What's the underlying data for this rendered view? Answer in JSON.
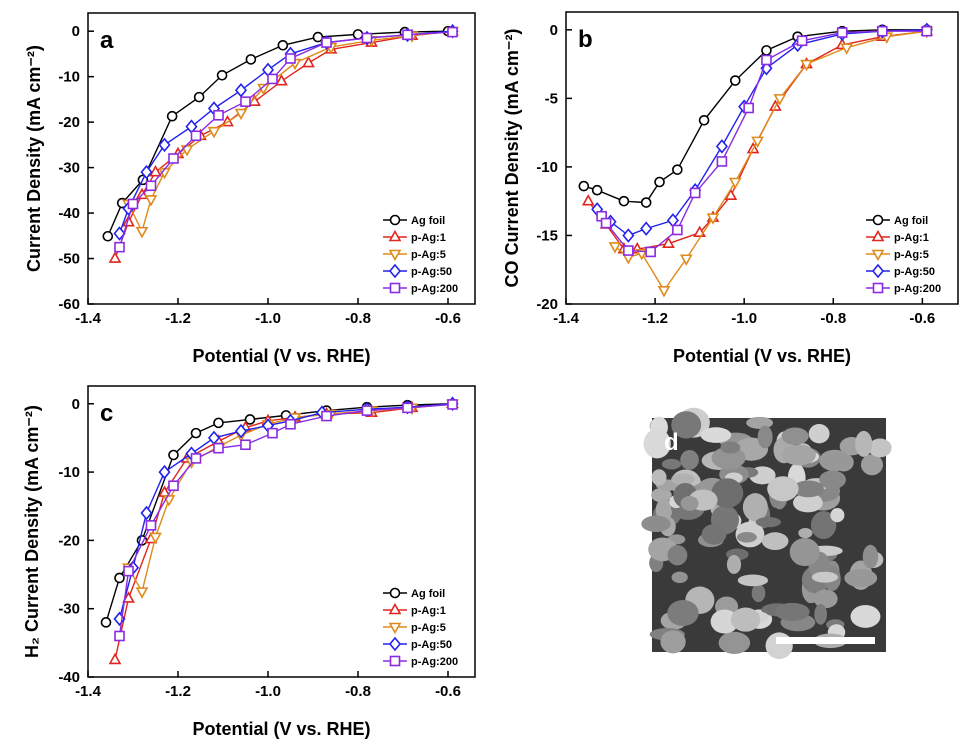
{
  "chart_data": [
    {
      "type": "line",
      "panel_label": "a",
      "xlabel": "Potential (V vs. RHE)",
      "ylabel": "Current Density (mA cm⁻²)",
      "legend": "lower right",
      "xlim": [
        -1.4,
        -0.54
      ],
      "xticks": [
        -1.4,
        -1.2,
        {
          "value": -1,
          "label": "-1.0"
        },
        -0.8,
        -0.6
      ],
      "ylim": [
        -60,
        4
      ],
      "yticks": [
        -60,
        -50,
        -40,
        -30,
        -20,
        -10,
        0
      ],
      "series": [
        {
          "name": "Ag foil",
          "color": "#000000",
          "marker": "circle",
          "x": [
            -1.356,
            -1.324,
            -1.278,
            -1.213,
            -1.153,
            -1.102,
            -1.038,
            -0.967,
            -0.889,
            -0.8,
            -0.696,
            -0.6
          ],
          "values": [
            -45.1,
            -37.8,
            -32.7,
            -18.7,
            -14.5,
            -9.7,
            -6.2,
            -3.1,
            -1.3,
            -0.7,
            -0.2,
            0
          ]
        },
        {
          "name": "p-Ag:1",
          "color": "#e0261e",
          "marker": "triangle-up",
          "x": [
            -1.34,
            -1.31,
            -1.28,
            -1.25,
            -1.2,
            -1.15,
            -1.09,
            -1.03,
            -0.97,
            -0.91,
            -0.86,
            -0.77,
            -0.68,
            -0.59
          ],
          "values": [
            -50,
            -42,
            -36,
            -31,
            -27,
            -23,
            -20,
            -15.5,
            -11,
            -7,
            -4,
            -2.5,
            -1,
            0
          ]
        },
        {
          "name": "p-Ag:5",
          "color": "#e08a1a",
          "marker": "triangle-down",
          "x": [
            -1.31,
            -1.28,
            -1.26,
            -1.23,
            -1.18,
            -1.12,
            -1.06,
            -1.01,
            -0.94,
            -0.86,
            -0.77,
            -0.68,
            -0.59
          ],
          "values": [
            -38,
            -44,
            -37,
            -31,
            -26,
            -22,
            -18,
            -12.5,
            -7,
            -3.5,
            -2,
            -1,
            0
          ]
        },
        {
          "name": "p-Ag:50",
          "color": "#2222ee",
          "marker": "diamond",
          "x": [
            -1.33,
            -1.31,
            -1.27,
            -1.23,
            -1.17,
            -1.12,
            -1.06,
            -1.0,
            -0.95,
            -0.87,
            -0.78,
            -0.69,
            -0.59
          ],
          "values": [
            -44.5,
            -39,
            -31,
            -25,
            -21,
            -17,
            -13,
            -8.5,
            -5,
            -2.5,
            -1.5,
            -0.8,
            0
          ]
        },
        {
          "name": "p-Ag:200",
          "color": "#8a2be2",
          "marker": "square",
          "x": [
            -1.33,
            -1.3,
            -1.26,
            -1.21,
            -1.16,
            -1.11,
            -1.05,
            -0.99,
            -0.95,
            -0.87,
            -0.78,
            -0.69,
            -0.59
          ],
          "values": [
            -47.5,
            -38,
            -34,
            -28,
            -23,
            -18.5,
            -15.5,
            -10.5,
            -6,
            -2.5,
            -1.5,
            -0.8,
            -0.2
          ]
        }
      ]
    },
    {
      "type": "line",
      "panel_label": "b",
      "xlabel": "Potential (V vs. RHE)",
      "ylabel": "CO Current Density (mA cm⁻²)",
      "legend": "lower right",
      "xlim": [
        -1.4,
        -0.52
      ],
      "xticks": [
        -1.4,
        -1.2,
        {
          "value": -1,
          "label": "-1.0"
        },
        -0.8,
        -0.6
      ],
      "ylim": [
        -20,
        1.3
      ],
      "yticks": [
        -20,
        -15,
        -10,
        -5,
        0
      ],
      "series": [
        {
          "name": "Ag foil",
          "color": "#000000",
          "marker": "circle",
          "x": [
            -1.36,
            -1.33,
            -1.27,
            -1.22,
            -1.19,
            -1.15,
            -1.09,
            -1.02,
            -0.95,
            -0.88,
            -0.78,
            -0.69,
            -0.59
          ],
          "values": [
            -11.4,
            -11.7,
            -12.5,
            -12.6,
            -11.1,
            -10.2,
            -6.6,
            -3.7,
            -1.5,
            -0.5,
            -0.1,
            0,
            0
          ]
        },
        {
          "name": "p-Ag:1",
          "color": "#e0261e",
          "marker": "triangle-up",
          "x": [
            -1.35,
            -1.31,
            -1.27,
            -1.24,
            -1.17,
            -1.1,
            -1.07,
            -1.03,
            -0.98,
            -0.93,
            -0.86,
            -0.78,
            -0.69,
            -0.59
          ],
          "values": [
            -12.5,
            -14.2,
            -16,
            -16,
            -15.6,
            -14.8,
            -13.7,
            -12.1,
            -8.7,
            -5.6,
            -2.5,
            -1.1,
            -0.5,
            -0.1
          ]
        },
        {
          "name": "p-Ag:5",
          "color": "#e08a1a",
          "marker": "triangle-down",
          "x": [
            -1.29,
            -1.26,
            -1.23,
            -1.18,
            -1.13,
            -1.07,
            -1.02,
            -0.97,
            -0.92,
            -0.86,
            -0.77,
            -0.68,
            -0.59
          ],
          "values": [
            -15.8,
            -16.6,
            -16.3,
            -19,
            -16.7,
            -13.7,
            -11.1,
            -8.1,
            -5,
            -2.5,
            -1.3,
            -0.5,
            -0.1
          ]
        },
        {
          "name": "p-Ag:50",
          "color": "#2222ee",
          "marker": "diamond",
          "x": [
            -1.33,
            -1.3,
            -1.26,
            -1.22,
            -1.16,
            -1.11,
            -1.05,
            -1.0,
            -0.95,
            -0.88,
            -0.78,
            -0.69,
            -0.59
          ],
          "values": [
            -13.1,
            -14,
            -15,
            -14.5,
            -13.9,
            -11.7,
            -8.5,
            -5.6,
            -2.8,
            -1.1,
            -0.3,
            -0.1,
            0
          ]
        },
        {
          "name": "p-Ag:200",
          "color": "#8a2be2",
          "marker": "square",
          "x": [
            -1.32,
            -1.31,
            -1.26,
            -1.21,
            -1.15,
            -1.11,
            -1.05,
            -0.99,
            -0.95,
            -0.87,
            -0.78,
            -0.69,
            -0.59
          ],
          "values": [
            -13.6,
            -14.1,
            -16.1,
            -16.2,
            -14.6,
            -11.9,
            -9.6,
            -5.7,
            -2.2,
            -0.8,
            -0.2,
            -0.1,
            -0.1
          ]
        }
      ]
    },
    {
      "type": "line",
      "panel_label": "c",
      "xlabel": "Potential (V vs. RHE)",
      "ylabel": "H₂ Current Density (mA cm⁻²)",
      "legend": "lower right",
      "xlim": [
        -1.4,
        -0.54
      ],
      "xticks": [
        -1.4,
        -1.2,
        {
          "value": -1,
          "label": "-1.0"
        },
        -0.8,
        -0.6
      ],
      "ylim": [
        -40,
        2.6
      ],
      "yticks": [
        -40,
        -30,
        -20,
        -10,
        0
      ],
      "series": [
        {
          "name": "Ag foil",
          "color": "#000000",
          "marker": "circle",
          "x": [
            -1.36,
            -1.33,
            -1.28,
            -1.21,
            -1.16,
            -1.11,
            -1.04,
            -0.96,
            -0.87,
            -0.78,
            -0.69,
            -0.59
          ],
          "values": [
            -32,
            -25.5,
            -20,
            -7.5,
            -4.3,
            -2.8,
            -2.3,
            -1.7,
            -1,
            -0.5,
            -0.2,
            0
          ]
        },
        {
          "name": "p-Ag:1",
          "color": "#e0261e",
          "marker": "triangle-up",
          "x": [
            -1.34,
            -1.31,
            -1.26,
            -1.23,
            -1.18,
            -1.11,
            -1.05,
            -1.0,
            -0.94,
            -0.87,
            -0.77,
            -0.68,
            -0.59
          ],
          "values": [
            -37.5,
            -28.5,
            -19.8,
            -13,
            -8,
            -5.5,
            -3.5,
            -2.5,
            -2,
            -1.5,
            -1.3,
            -0.6,
            0
          ]
        },
        {
          "name": "p-Ag:5",
          "color": "#e08a1a",
          "marker": "triangle-down",
          "x": [
            -1.31,
            -1.28,
            -1.25,
            -1.22,
            -1.17,
            -1.11,
            -1.06,
            -1.0,
            -0.94,
            -0.86,
            -0.77,
            -0.68,
            -0.59
          ],
          "values": [
            -24,
            -27.5,
            -19.5,
            -14,
            -8.5,
            -6.3,
            -4.6,
            -3,
            -2,
            -1.5,
            -1,
            -0.6,
            0
          ]
        },
        {
          "name": "p-Ag:50",
          "color": "#2222ee",
          "marker": "diamond",
          "x": [
            -1.33,
            -1.3,
            -1.27,
            -1.23,
            -1.17,
            -1.12,
            -1.06,
            -1.0,
            -0.95,
            -0.88,
            -0.78,
            -0.69,
            -0.59
          ],
          "values": [
            -31.5,
            -24,
            -16,
            -10,
            -7.3,
            -5,
            -4,
            -3.2,
            -2.5,
            -1.3,
            -0.8,
            -0.5,
            0
          ]
        },
        {
          "name": "p-Ag:200",
          "color": "#8a2be2",
          "marker": "square",
          "x": [
            -1.33,
            -1.31,
            -1.26,
            -1.21,
            -1.16,
            -1.11,
            -1.05,
            -0.99,
            -0.95,
            -0.87,
            -0.78,
            -0.69,
            -0.59
          ],
          "values": [
            -34,
            -24.5,
            -17.8,
            -12,
            -8,
            -6.5,
            -6,
            -4.3,
            -3,
            -1.8,
            -1,
            -0.6,
            -0.1
          ]
        }
      ]
    }
  ],
  "image_panel": {
    "label": "d"
  }
}
